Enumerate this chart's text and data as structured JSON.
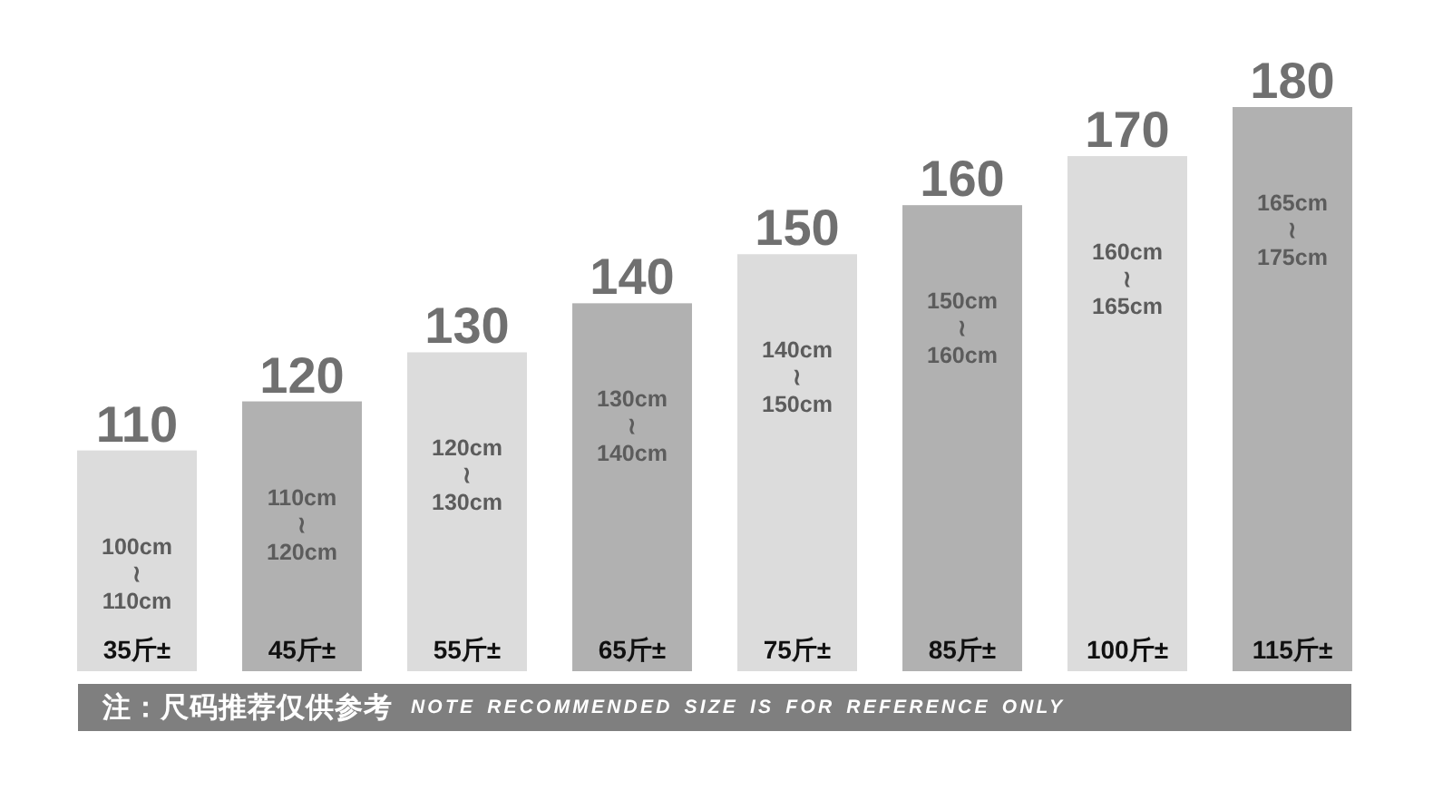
{
  "chart_data": {
    "type": "bar",
    "categories": [
      "35斤±",
      "45斤±",
      "55斤±",
      "65斤±",
      "75斤±",
      "85斤±",
      "100斤±",
      "115斤±"
    ],
    "values": [
      110,
      120,
      130,
      140,
      150,
      160,
      170,
      180
    ],
    "colors": [
      "#dcdcdc",
      "#b1b1b1",
      "#dcdcdc",
      "#b1b1b1",
      "#dcdcdc",
      "#b1b1b1",
      "#dcdcdc",
      "#b1b1b1"
    ],
    "ylim": [
      65,
      180
    ],
    "data_labels": true,
    "tick_labels": "x",
    "annotations": [
      "100cm\n≀\n110cm",
      "110cm\n≀\n120cm",
      "120cm\n≀\n130cm",
      "130cm\n≀\n140cm",
      "140cm\n≀\n150cm",
      "150cm\n≀\n160cm",
      "160cm\n≀\n165cm",
      "165cm\n≀\n175cm",
      "注：尺码推荐仅供参考",
      "NOTE RECOMMENDED SIZE IS FOR REFERENCE ONLY"
    ]
  }
}
